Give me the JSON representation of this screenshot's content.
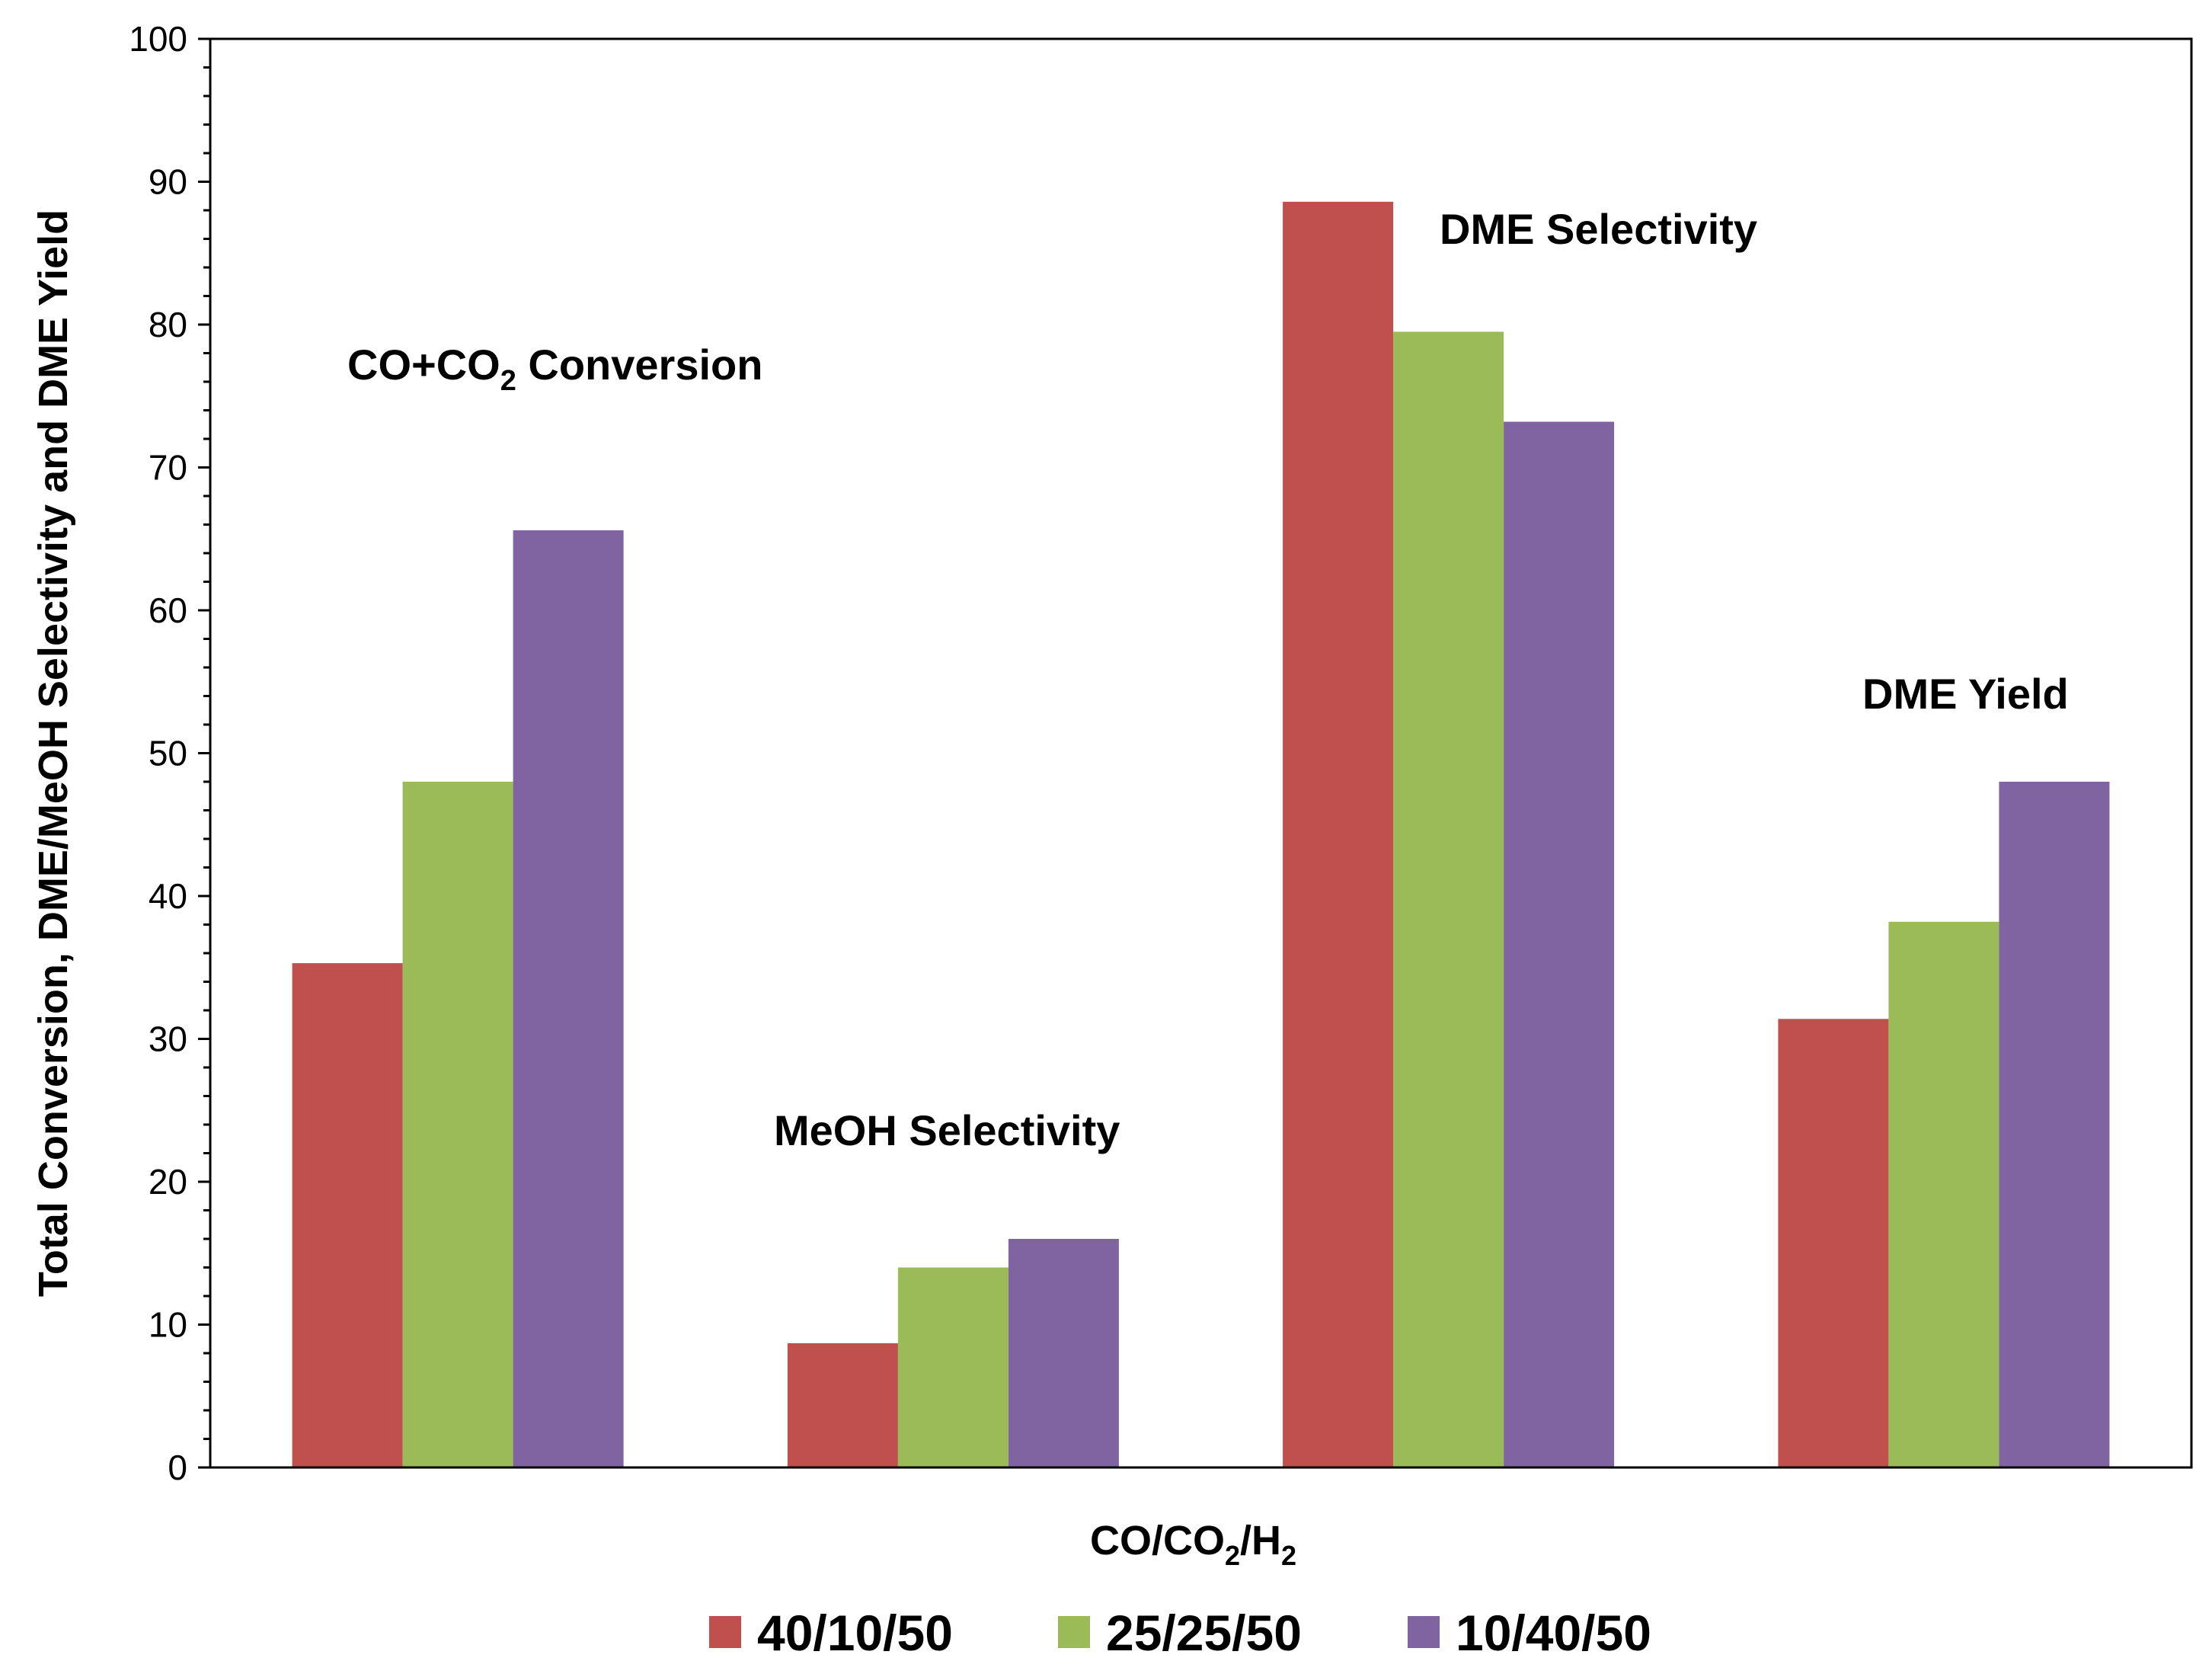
{
  "chart_data": {
    "type": "bar",
    "categories": [
      "CO+CO2 Conversion",
      "MeOH Selectivity",
      "DME Selectivity",
      "DME Yield"
    ],
    "category_labels": [
      {
        "main": "CO+CO",
        "sub": "2",
        "tail": " Conversion"
      },
      {
        "main": "MeOH Selectivity",
        "sub": "",
        "tail": ""
      },
      {
        "main": "DME Selectivity",
        "sub": "",
        "tail": ""
      },
      {
        "main": "DME Yield",
        "sub": "",
        "tail": ""
      }
    ],
    "series": [
      {
        "name": "40/10/50",
        "color": "#C0504D",
        "values": [
          35.3,
          8.7,
          88.6,
          31.4
        ]
      },
      {
        "name": "25/25/50",
        "color": "#9BBB59",
        "values": [
          48.0,
          14.0,
          79.5,
          38.2
        ]
      },
      {
        "name": "10/40/50",
        "color": "#8064A2",
        "values": [
          65.6,
          16.0,
          73.2,
          48.0
        ]
      }
    ],
    "title": "",
    "ylabel": "Total Conversion, DME/MeOH Selectivity and DME Yield",
    "xlabel": {
      "parts": [
        "CO/CO",
        "2",
        "/H",
        "2"
      ]
    },
    "ylim": [
      0,
      100
    ],
    "yticks": [
      0,
      10,
      20,
      30,
      40,
      50,
      60,
      70,
      80,
      90,
      100
    ],
    "grid": false,
    "legend_position": "bottom"
  }
}
